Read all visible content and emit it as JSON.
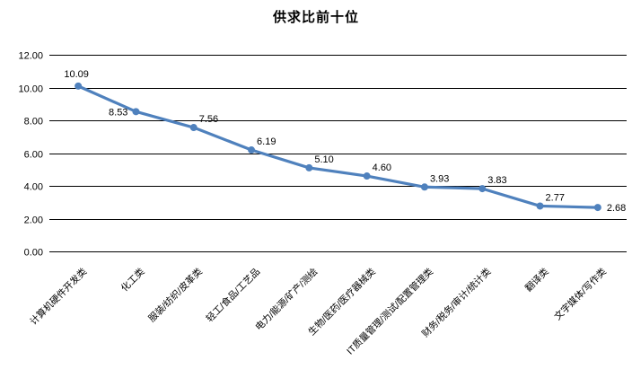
{
  "title": "供求比前十位",
  "chart_data": {
    "type": "line",
    "title": "供求比前十位",
    "categories": [
      "计算机硬件开发类",
      "化工类",
      "服装/纺织/皮革类",
      "轻工/食品/工艺品",
      "电力/能源/矿产/测绘",
      "生物/医药/医疗器械类",
      "IT质量管理/测试/配置管理类",
      "财务/税务/审计/统计类",
      "翻译类",
      "文字媒体/写作类"
    ],
    "values": [
      10.09,
      8.53,
      7.56,
      6.19,
      5.1,
      4.6,
      3.93,
      3.83,
      2.77,
      2.68
    ],
    "data_labels": [
      "10.09",
      "8.53",
      "7.56",
      "6.19",
      "5.10",
      "4.60",
      "3.93",
      "3.83",
      "2.77",
      "2.68"
    ],
    "y_ticks": [
      {
        "value": 12,
        "label": "12.00"
      },
      {
        "value": 10,
        "label": "10.00"
      },
      {
        "value": 8,
        "label": "8.00"
      },
      {
        "value": 6,
        "label": "6.00"
      },
      {
        "value": 4,
        "label": "4.00"
      },
      {
        "value": 2,
        "label": "2.00"
      },
      {
        "value": 0,
        "label": "0.00"
      }
    ],
    "ylim": [
      0,
      12
    ],
    "xlabel": "",
    "ylabel": "",
    "grid": true,
    "legend": "none",
    "x_label_rotation_deg": -45,
    "line_color": "#4F81BD",
    "marker_color": "#4F81BD",
    "grid_color": "#000000",
    "text_color": "#000000",
    "background_color": "#FFFFFF"
  }
}
